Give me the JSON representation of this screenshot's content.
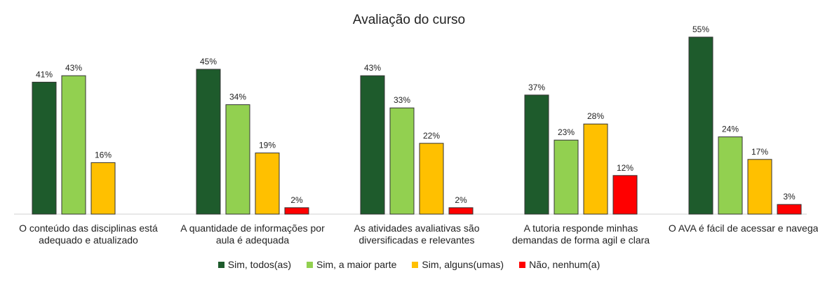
{
  "chart_data": {
    "type": "bar",
    "title": "Avaliação do curso",
    "categories": [
      "O conteúdo das disciplinas está adequado e atualizado",
      "A quantidade de informações por aula é adequada",
      "As atividades avaliativas são diversificadas e relevantes",
      "A tutoria responde minhas demandas de forma agil e clara",
      "O AVA é fácil de acessar e navegar"
    ],
    "series": [
      {
        "name": "Sim, todos(as)",
        "color": "#1e5b2c",
        "values": [
          41,
          45,
          43,
          37,
          55
        ],
        "value_labels": [
          "41%",
          "45%",
          "43%",
          "37%",
          "55%"
        ]
      },
      {
        "name": "Sim, a maior parte",
        "color": "#92d050",
        "values": [
          43,
          34,
          33,
          23,
          24
        ],
        "value_labels": [
          "43%",
          "34%",
          "33%",
          "23%",
          "24%"
        ]
      },
      {
        "name": "Sim, alguns(umas)",
        "color": "#ffc000",
        "values": [
          16,
          19,
          22,
          28,
          17
        ],
        "value_labels": [
          "16%",
          "19%",
          "22%",
          "28%",
          "17%"
        ]
      },
      {
        "name": "Não, nenhum(a)",
        "color": "#ff0000",
        "values": [
          null,
          2,
          2,
          12,
          3
        ],
        "value_labels": [
          null,
          "2%",
          "2%",
          "12%",
          "3%"
        ]
      }
    ],
    "legend": "bottom"
  }
}
